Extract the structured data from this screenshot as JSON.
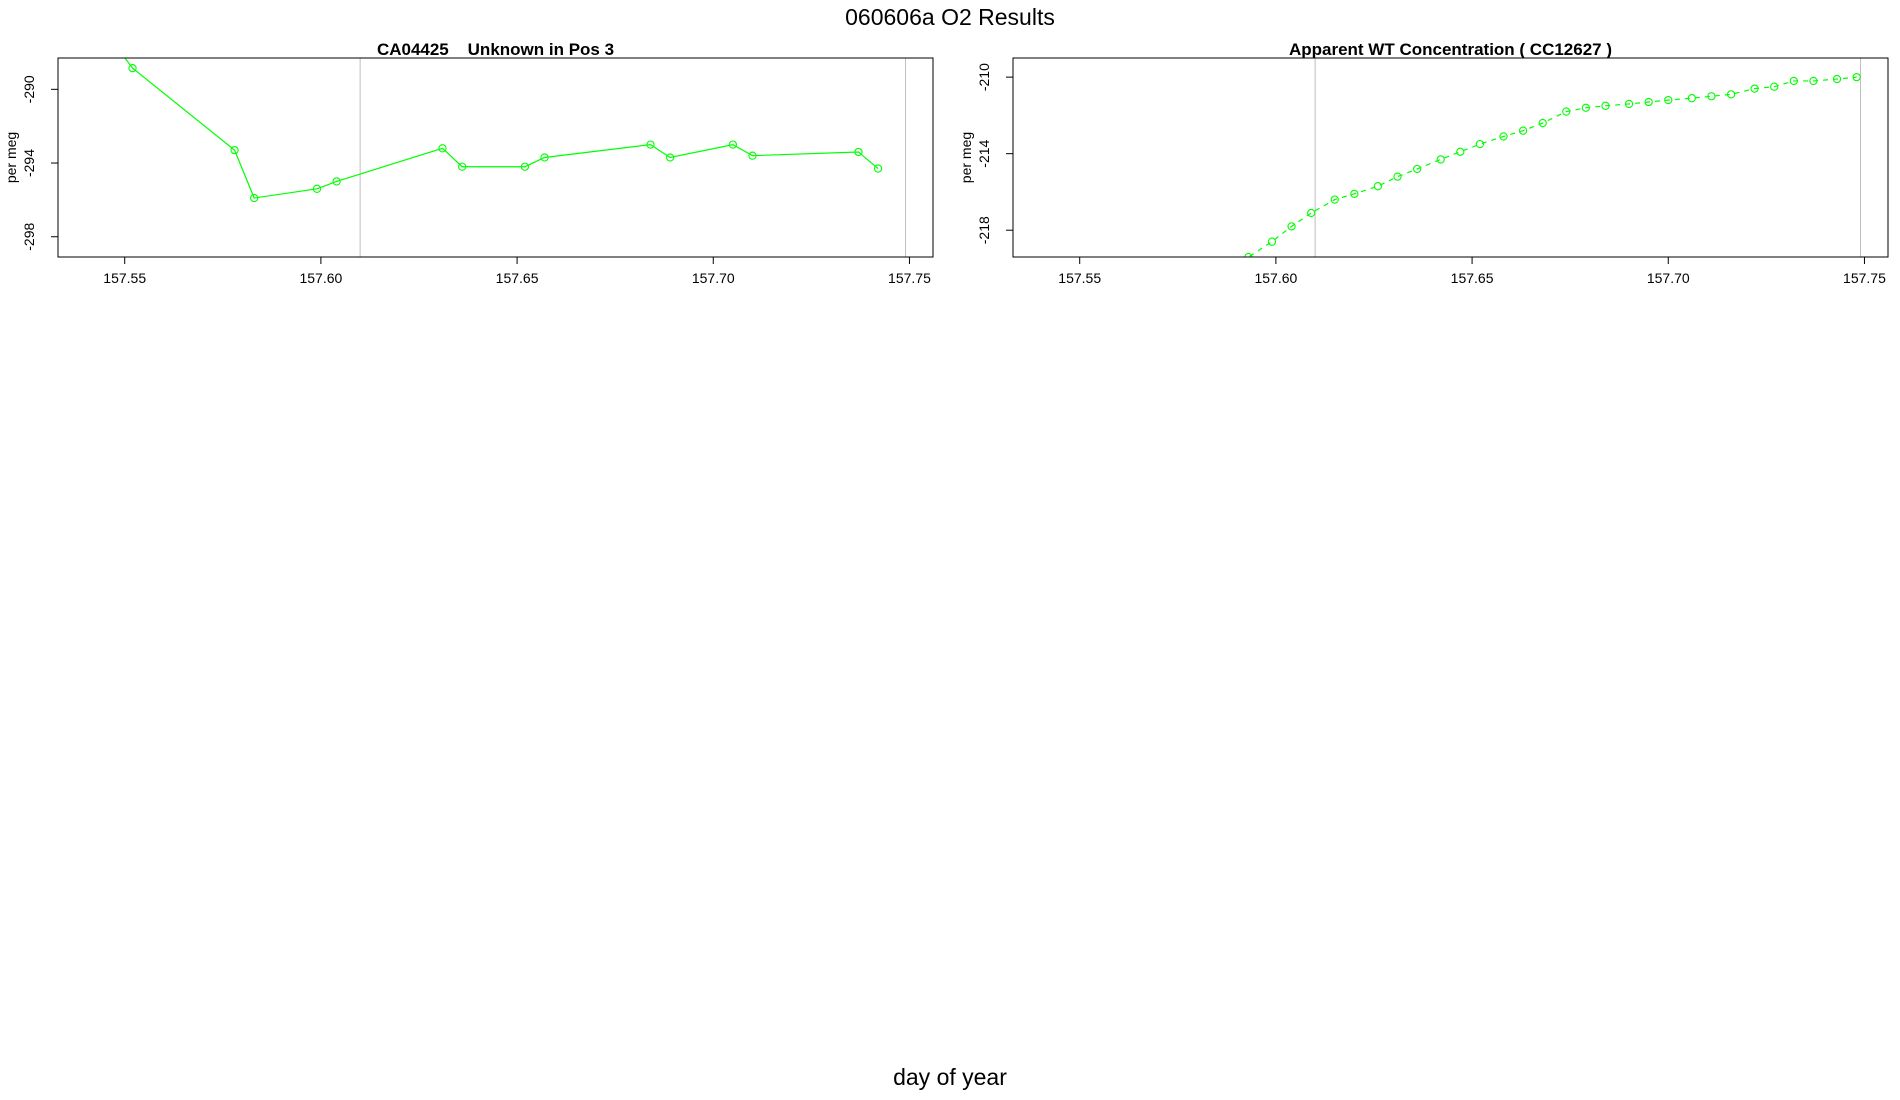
{
  "figure": {
    "title": "060606a  O2 Results",
    "xlabel": "day of year"
  },
  "colors": {
    "series": "#00ff00",
    "frame": "#000000",
    "vline": "#bebebe"
  },
  "chart_data": [
    {
      "type": "line",
      "title": "CA04425    Unknown in Pos 3",
      "xlabel": "",
      "ylabel": "per meg",
      "xlim": [
        157.533,
        157.756
      ],
      "ylim": [
        -299.1,
        -288.3
      ],
      "x_ticks": [
        157.55,
        157.6,
        157.65,
        157.7,
        157.75
      ],
      "x_tick_labels": [
        "157.55",
        "157.60",
        "157.65",
        "157.70",
        "157.75"
      ],
      "y_ticks": [
        -290,
        -294,
        -298
      ],
      "y_tick_labels": [
        "-290",
        "-294",
        "-298"
      ],
      "vlines": [
        157.61,
        157.749
      ],
      "line_style": "solid",
      "markers": "open-circle",
      "grid": false,
      "series": [
        {
          "values": [
            [
              157.549,
              -288.0
            ],
            [
              157.552,
              -288.85
            ],
            [
              157.578,
              -293.3
            ],
            [
              157.583,
              -295.9
            ],
            [
              157.599,
              -295.4
            ],
            [
              157.604,
              -295.0
            ],
            [
              157.631,
              -293.2
            ],
            [
              157.636,
              -294.2
            ],
            [
              157.652,
              -294.2
            ],
            [
              157.657,
              -293.7
            ],
            [
              157.684,
              -293.0
            ],
            [
              157.689,
              -293.7
            ],
            [
              157.705,
              -293.0
            ],
            [
              157.71,
              -293.6
            ],
            [
              157.737,
              -293.4
            ],
            [
              157.742,
              -294.3
            ]
          ]
        }
      ]
    },
    {
      "type": "line",
      "title": "Apparent WT Concentration ( CC12627 )",
      "xlabel": "",
      "ylabel": "per meg",
      "xlim": [
        157.533,
        157.756
      ],
      "ylim": [
        -219.4,
        -209.0
      ],
      "x_ticks": [
        157.55,
        157.6,
        157.65,
        157.7,
        157.75
      ],
      "x_tick_labels": [
        "157.55",
        "157.60",
        "157.65",
        "157.70",
        "157.75"
      ],
      "y_ticks": [
        -210,
        -214,
        -218
      ],
      "y_tick_labels": [
        "-210",
        "-214",
        "-218"
      ],
      "vlines": [
        157.61,
        157.749
      ],
      "line_style": "dashed",
      "markers": "open-circle",
      "grid": false,
      "series": [
        {
          "values": [
            [
              157.591,
              -219.6
            ],
            [
              157.593,
              -219.4
            ],
            [
              157.599,
              -218.6
            ],
            [
              157.604,
              -217.8
            ],
            [
              157.609,
              -217.1
            ],
            [
              157.615,
              -216.4
            ],
            [
              157.62,
              -216.1
            ],
            [
              157.626,
              -215.7
            ],
            [
              157.631,
              -215.2
            ],
            [
              157.636,
              -214.8
            ],
            [
              157.642,
              -214.3
            ],
            [
              157.647,
              -213.9
            ],
            [
              157.652,
              -213.5
            ],
            [
              157.658,
              -213.1
            ],
            [
              157.663,
              -212.8
            ],
            [
              157.668,
              -212.4
            ],
            [
              157.674,
              -211.8
            ],
            [
              157.679,
              -211.6
            ],
            [
              157.684,
              -211.5
            ],
            [
              157.69,
              -211.4
            ],
            [
              157.695,
              -211.3
            ],
            [
              157.7,
              -211.2
            ],
            [
              157.706,
              -211.1
            ],
            [
              157.711,
              -211.0
            ],
            [
              157.716,
              -210.9
            ],
            [
              157.722,
              -210.6
            ],
            [
              157.727,
              -210.5
            ],
            [
              157.732,
              -210.2
            ],
            [
              157.737,
              -210.2
            ],
            [
              157.743,
              -210.1
            ],
            [
              157.748,
              -210.0
            ]
          ]
        }
      ]
    }
  ]
}
